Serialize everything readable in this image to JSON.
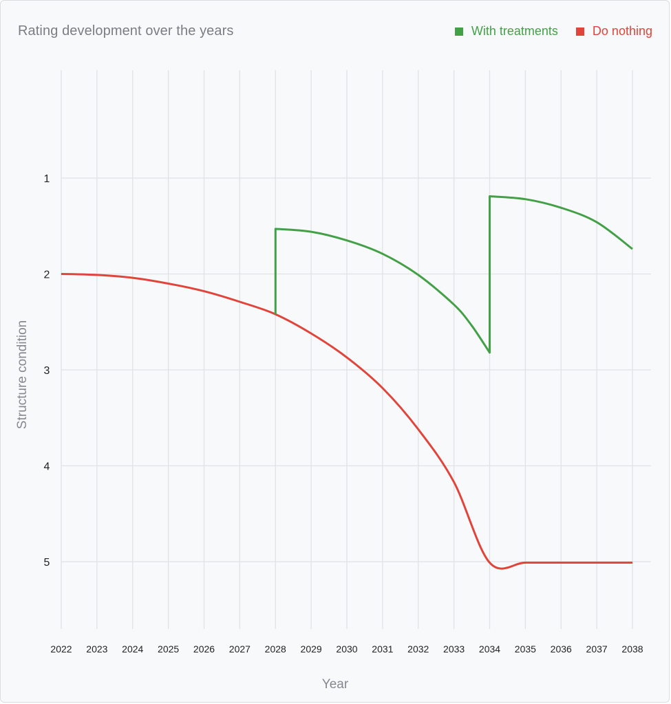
{
  "chart_data": {
    "type": "line",
    "title": "Rating development over the years",
    "xlabel": "Year",
    "ylabel": "Structure condition",
    "x_ticks": [
      "2022",
      "2023",
      "2024",
      "2025",
      "2026",
      "2027",
      "2028",
      "2029",
      "2030",
      "2031",
      "2032",
      "2033",
      "2034",
      "2035",
      "2036",
      "2037",
      "2038"
    ],
    "y_ticks": [
      "1",
      "2",
      "3",
      "4",
      "5"
    ],
    "xlim": [
      2022,
      2038
    ],
    "ylim": [
      -0.1,
      5.7
    ],
    "y_inverted": true,
    "grid": true,
    "legend_position": "top-right",
    "series": [
      {
        "name": "With treatments",
        "color": "#43a047",
        "points": [
          [
            2028,
            2.42
          ],
          [
            2028,
            1.53
          ],
          [
            2029,
            1.56
          ],
          [
            2030,
            1.65
          ],
          [
            2031,
            1.79
          ],
          [
            2032,
            2.01
          ],
          [
            2033,
            2.32
          ],
          [
            2033.5,
            2.54
          ],
          [
            2034,
            2.82
          ],
          [
            2034,
            1.19
          ],
          [
            2035,
            1.22
          ],
          [
            2036,
            1.31
          ],
          [
            2037,
            1.46
          ],
          [
            2038,
            1.74
          ]
        ]
      },
      {
        "name": "Do nothing",
        "color": "#e0443a",
        "points": [
          [
            2022,
            2.0
          ],
          [
            2023,
            2.01
          ],
          [
            2024,
            2.04
          ],
          [
            2025,
            2.1
          ],
          [
            2026,
            2.18
          ],
          [
            2027,
            2.29
          ],
          [
            2028,
            2.42
          ],
          [
            2029,
            2.62
          ],
          [
            2030,
            2.87
          ],
          [
            2031,
            3.19
          ],
          [
            2032,
            3.62
          ],
          [
            2033,
            4.17
          ],
          [
            2034,
            5.01
          ],
          [
            2035,
            5.01
          ],
          [
            2036,
            5.01
          ],
          [
            2037,
            5.01
          ],
          [
            2038,
            5.01
          ]
        ]
      }
    ]
  }
}
